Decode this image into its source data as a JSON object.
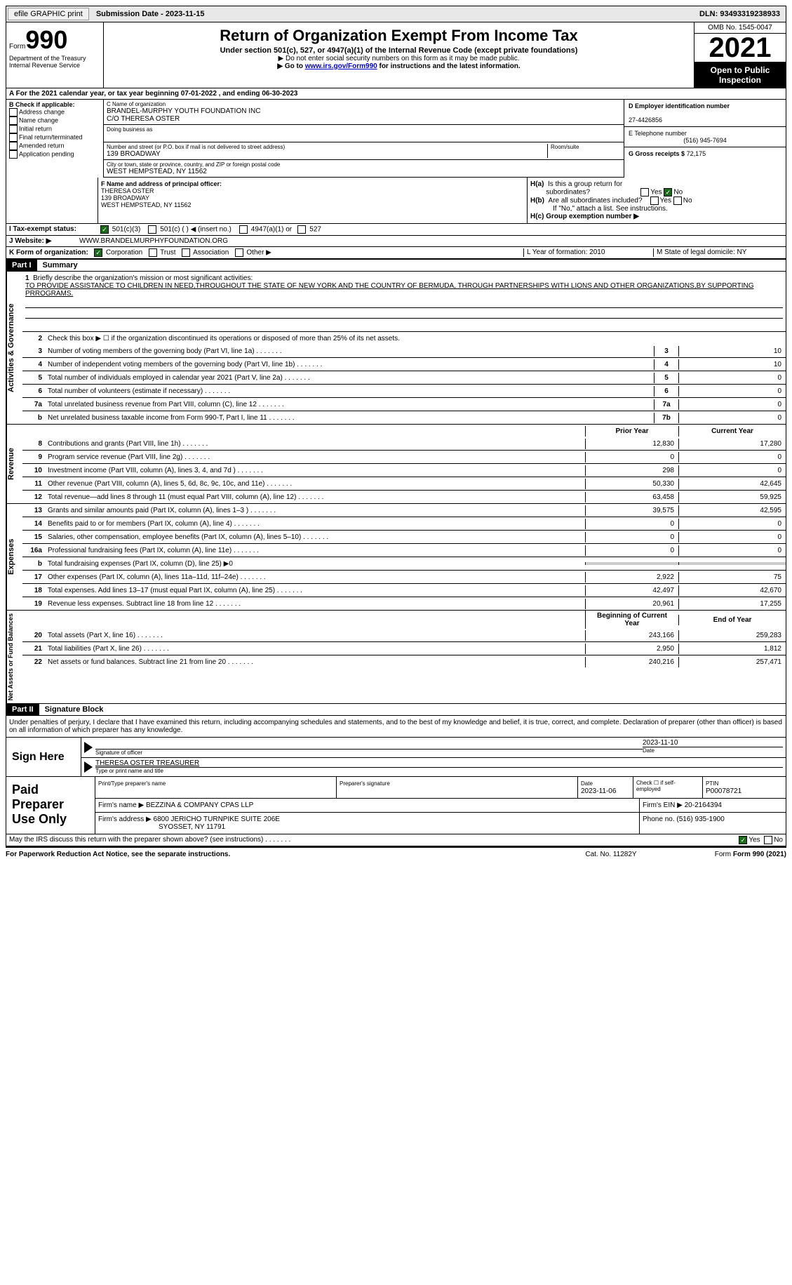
{
  "topbar": {
    "efile_btn": "efile GRAPHIC print",
    "submission_label": "Submission Date - 2023-11-15",
    "dln": "DLN: 93493319238933"
  },
  "header": {
    "form_label": "Form",
    "form_number": "990",
    "dept": "Department of the Treasury Internal Revenue Service",
    "title": "Return of Organization Exempt From Income Tax",
    "subtitle": "Under section 501(c), 527, or 4947(a)(1) of the Internal Revenue Code (except private foundations)",
    "note1": "▶ Do not enter social security numbers on this form as it may be made public.",
    "note2_pre": "▶ Go to ",
    "note2_link": "www.irs.gov/Form990",
    "note2_post": " for instructions and the latest information.",
    "omb": "OMB No. 1545-0047",
    "year": "2021",
    "open": "Open to Public Inspection"
  },
  "row_a": "A For the 2021 calendar year, or tax year beginning 07-01-2022    , and ending 06-30-2023",
  "section_b": {
    "title": "B Check if applicable:",
    "items": [
      "Address change",
      "Name change",
      "Initial return",
      "Final return/terminated",
      "Amended return",
      "Application pending"
    ]
  },
  "section_c": {
    "name_label": "C Name of organization",
    "name1": "BRANDEL-MURPHY YOUTH FOUNDATION INC",
    "name2": "C/O THERESA OSTER",
    "dba_label": "Doing business as",
    "street_label": "Number and street (or P.O. box if mail is not delivered to street address)",
    "street": "139 BROADWAY",
    "room_label": "Room/suite",
    "city_label": "City or town, state or province, country, and ZIP or foreign postal code",
    "city": "WEST HEMPSTEAD, NY  11562"
  },
  "section_d": {
    "ein_label": "D Employer identification number",
    "ein": "27-4426856",
    "phone_label": "E Telephone number",
    "phone": "(516) 945-7694",
    "gross_label": "G Gross receipts $",
    "gross": "72,175"
  },
  "section_f": {
    "label": "F Name and address of principal officer:",
    "name": "THERESA OSTER",
    "street": "139 BROADWAY",
    "city": "WEST HEMPSTEAD, NY  11562"
  },
  "section_h": {
    "ha_label": "H(a)  Is this a group return for subordinates?",
    "hb_label": "H(b)  Are all subordinates included?",
    "hb_note": "If \"No,\" attach a list. See instructions.",
    "hc_label": "H(c)  Group exemption number ▶"
  },
  "section_i": {
    "label": "I  Tax-exempt status:",
    "opts": [
      "501(c)(3)",
      "501(c) (  ) ◀ (insert no.)",
      "4947(a)(1) or",
      "527"
    ]
  },
  "section_j": {
    "label": "J  Website: ▶",
    "val": "WWW.BRANDELMURPHYFOUNDATION.ORG"
  },
  "section_k": {
    "label": "K Form of organization:",
    "opts": [
      "Corporation",
      "Trust",
      "Association",
      "Other ▶"
    ],
    "l_label": "L Year of formation: 2010",
    "m_label": "M State of legal domicile: NY"
  },
  "part1": {
    "header": "Part I",
    "title": "Summary",
    "line1_label": "Briefly describe the organization's mission or most significant activities:",
    "line1_text": "TO PROVIDE ASSISTANCE TO CHILDREN IN NEED,THROUGHOUT THE STATE OF NEW YORK AND THE COUNTRY OF BERMUDA, THROUGH PARTNERSHIPS WITH LIONS AND OTHER ORGANIZATIONS,BY SUPPORTING PRROGRAMS.",
    "line2": "Check this box ▶ ☐  if the organization discontinued its operations or disposed of more than 25% of its net assets.",
    "sidebar_gov": "Activities & Governance",
    "sidebar_rev": "Revenue",
    "sidebar_exp": "Expenses",
    "sidebar_net": "Net Assets or Fund Balances",
    "prior_year": "Prior Year",
    "current_year": "Current Year",
    "begin_year": "Beginning of Current Year",
    "end_year": "End of Year",
    "lines_gov": [
      {
        "n": "3",
        "t": "Number of voting members of the governing body (Part VI, line 1a)",
        "b": "3",
        "v": "10"
      },
      {
        "n": "4",
        "t": "Number of independent voting members of the governing body (Part VI, line 1b)",
        "b": "4",
        "v": "10"
      },
      {
        "n": "5",
        "t": "Total number of individuals employed in calendar year 2021 (Part V, line 2a)",
        "b": "5",
        "v": "0"
      },
      {
        "n": "6",
        "t": "Total number of volunteers (estimate if necessary)",
        "b": "6",
        "v": "0"
      },
      {
        "n": "7a",
        "t": "Total unrelated business revenue from Part VIII, column (C), line 12",
        "b": "7a",
        "v": "0"
      },
      {
        "n": "b",
        "t": "Net unrelated business taxable income from Form 990-T, Part I, line 11",
        "b": "7b",
        "v": "0"
      }
    ],
    "lines_rev": [
      {
        "n": "8",
        "t": "Contributions and grants (Part VIII, line 1h)",
        "p": "12,830",
        "c": "17,280"
      },
      {
        "n": "9",
        "t": "Program service revenue (Part VIII, line 2g)",
        "p": "0",
        "c": "0"
      },
      {
        "n": "10",
        "t": "Investment income (Part VIII, column (A), lines 3, 4, and 7d )",
        "p": "298",
        "c": "0"
      },
      {
        "n": "11",
        "t": "Other revenue (Part VIII, column (A), lines 5, 6d, 8c, 9c, 10c, and 11e)",
        "p": "50,330",
        "c": "42,645"
      },
      {
        "n": "12",
        "t": "Total revenue—add lines 8 through 11 (must equal Part VIII, column (A), line 12)",
        "p": "63,458",
        "c": "59,925"
      }
    ],
    "lines_exp": [
      {
        "n": "13",
        "t": "Grants and similar amounts paid (Part IX, column (A), lines 1–3 )",
        "p": "39,575",
        "c": "42,595"
      },
      {
        "n": "14",
        "t": "Benefits paid to or for members (Part IX, column (A), line 4)",
        "p": "0",
        "c": "0"
      },
      {
        "n": "15",
        "t": "Salaries, other compensation, employee benefits (Part IX, column (A), lines 5–10)",
        "p": "0",
        "c": "0"
      },
      {
        "n": "16a",
        "t": "Professional fundraising fees (Part IX, column (A), line 11e)",
        "p": "0",
        "c": "0"
      },
      {
        "n": "b",
        "t": "Total fundraising expenses (Part IX, column (D), line 25) ▶0",
        "p": "",
        "c": "",
        "shaded": true
      },
      {
        "n": "17",
        "t": "Other expenses (Part IX, column (A), lines 11a–11d, 11f–24e)",
        "p": "2,922",
        "c": "75"
      },
      {
        "n": "18",
        "t": "Total expenses. Add lines 13–17 (must equal Part IX, column (A), line 25)",
        "p": "42,497",
        "c": "42,670"
      },
      {
        "n": "19",
        "t": "Revenue less expenses. Subtract line 18 from line 12",
        "p": "20,961",
        "c": "17,255"
      }
    ],
    "lines_net": [
      {
        "n": "20",
        "t": "Total assets (Part X, line 16)",
        "p": "243,166",
        "c": "259,283"
      },
      {
        "n": "21",
        "t": "Total liabilities (Part X, line 26)",
        "p": "2,950",
        "c": "1,812"
      },
      {
        "n": "22",
        "t": "Net assets or fund balances. Subtract line 21 from line 20",
        "p": "240,216",
        "c": "257,471"
      }
    ]
  },
  "part2": {
    "header": "Part II",
    "title": "Signature Block",
    "declaration": "Under penalties of perjury, I declare that I have examined this return, including accompanying schedules and statements, and to the best of my knowledge and belief, it is true, correct, and complete. Declaration of preparer (other than officer) is based on all information of which preparer has any knowledge.",
    "sign_here": "Sign Here",
    "sig_officer_label": "Signature of officer",
    "sig_date": "2023-11-10",
    "sig_date_label": "Date",
    "sig_name": "THERESA OSTER  TREASURER",
    "sig_name_label": "Type or print name and title",
    "paid_label": "Paid Preparer Use Only",
    "prep_name_label": "Print/Type preparer's name",
    "prep_sig_label": "Preparer's signature",
    "prep_date_label": "Date",
    "prep_date": "2023-11-06",
    "prep_check_label": "Check ☐ if self-employed",
    "ptin_label": "PTIN",
    "ptin": "P00078721",
    "firm_name_label": "Firm's name    ▶",
    "firm_name": "BEZZINA & COMPANY CPAS LLP",
    "firm_ein_label": "Firm's EIN ▶",
    "firm_ein": "20-2164394",
    "firm_addr_label": "Firm's address ▶",
    "firm_addr1": "6800 JERICHO TURNPIKE SUITE 206E",
    "firm_addr2": "SYOSSET, NY  11791",
    "firm_phone_label": "Phone no.",
    "firm_phone": "(516) 935-1900",
    "discuss": "May the IRS discuss this return with the preparer shown above? (see instructions)"
  },
  "footer": {
    "paperwork": "For Paperwork Reduction Act Notice, see the separate instructions.",
    "cat": "Cat. No. 11282Y",
    "form": "Form 990 (2021)"
  }
}
